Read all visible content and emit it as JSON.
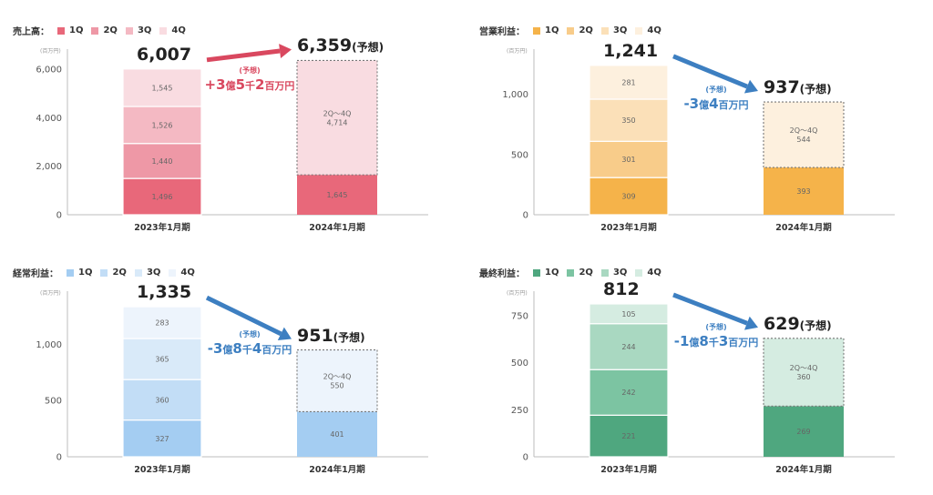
{
  "chart_data": [
    {
      "type": "bar",
      "title": "売上高：",
      "unit": "(百万円)",
      "categories": [
        "2023年1月期",
        "2024年1月期"
      ],
      "series": [
        {
          "name": "1Q",
          "values": [
            1496,
            1645
          ]
        },
        {
          "name": "2Q",
          "values": [
            1440,
            null
          ]
        },
        {
          "name": "3Q",
          "values": [
            1526,
            null
          ]
        },
        {
          "name": "4Q",
          "values": [
            1545,
            null
          ]
        }
      ],
      "forecast": {
        "label": "2Q～4Q",
        "value": 4714
      },
      "segment_labels": [
        [
          "1,496",
          "1,440",
          "1,526",
          "1,545"
        ],
        [
          "1,645",
          "4,714"
        ]
      ],
      "totals": [
        "6,007",
        "6,359"
      ],
      "forecast_suffix": "(予想)",
      "diff": {
        "label": "(予想)",
        "value": "+3",
        "units": [
          "億",
          "5",
          "千",
          "2",
          "百万円"
        ]
      },
      "yticks": [
        "0",
        "2,000",
        "4,000",
        "6,000"
      ],
      "ylim": [
        0,
        6300
      ],
      "colors": [
        "#e8687a",
        "#ee98a6",
        "#f4b9c3",
        "#f9dce1"
      ],
      "diff_color": "#d9485f"
    },
    {
      "type": "bar",
      "title": "営業利益：",
      "unit": "(百万円)",
      "categories": [
        "2023年1月期",
        "2024年1月期"
      ],
      "series": [
        {
          "name": "1Q",
          "values": [
            309,
            393
          ]
        },
        {
          "name": "2Q",
          "values": [
            301,
            null
          ]
        },
        {
          "name": "3Q",
          "values": [
            350,
            null
          ]
        },
        {
          "name": "4Q",
          "values": [
            281,
            null
          ]
        }
      ],
      "forecast": {
        "label": "2Q～4Q",
        "value": 544
      },
      "segment_labels": [
        [
          "309",
          "301",
          "350",
          "281"
        ],
        [
          "393",
          "544"
        ]
      ],
      "totals": [
        "1,241",
        "937"
      ],
      "forecast_suffix": "(予想)",
      "diff": {
        "label": "(予想)",
        "value": "-3",
        "units": [
          "億",
          "4",
          "百万円"
        ]
      },
      "yticks": [
        "0",
        "500",
        "1,000"
      ],
      "ylim": [
        0,
        1270
      ],
      "colors": [
        "#f5b34a",
        "#f8cc8a",
        "#fbe0b8",
        "#fdf0de"
      ],
      "diff_color": "#3d7fc1"
    },
    {
      "type": "bar",
      "title": "経常利益：",
      "unit": "(百万円)",
      "categories": [
        "2023年1月期",
        "2024年1月期"
      ],
      "series": [
        {
          "name": "1Q",
          "values": [
            327,
            401
          ]
        },
        {
          "name": "2Q",
          "values": [
            360,
            null
          ]
        },
        {
          "name": "3Q",
          "values": [
            365,
            null
          ]
        },
        {
          "name": "4Q",
          "values": [
            283,
            null
          ]
        }
      ],
      "forecast": {
        "label": "2Q～4Q",
        "value": 550
      },
      "segment_labels": [
        [
          "327",
          "360",
          "365",
          "283"
        ],
        [
          "401",
          "550"
        ]
      ],
      "totals": [
        "1,335",
        "951"
      ],
      "forecast_suffix": "(予想)",
      "diff": {
        "label": "(予想)",
        "value": "-3",
        "units": [
          "億",
          "8",
          "千",
          "4",
          "百万円"
        ]
      },
      "yticks": [
        "0",
        "500",
        "1,000"
      ],
      "ylim": [
        0,
        1360
      ],
      "colors": [
        "#a4cdf2",
        "#c2ddf6",
        "#d9eaf9",
        "#edf4fc"
      ],
      "diff_color": "#3d7fc1"
    },
    {
      "type": "bar",
      "title": "最終利益：",
      "unit": "(百万円)",
      "categories": [
        "2023年1月期",
        "2024年1月期"
      ],
      "series": [
        {
          "name": "1Q",
          "values": [
            221,
            269
          ]
        },
        {
          "name": "2Q",
          "values": [
            242,
            null
          ]
        },
        {
          "name": "3Q",
          "values": [
            244,
            null
          ]
        },
        {
          "name": "4Q",
          "values": [
            105,
            null
          ]
        }
      ],
      "forecast": {
        "label": "2Q～4Q",
        "value": 360
      },
      "segment_labels": [
        [
          "221",
          "242",
          "244",
          "105"
        ],
        [
          "269",
          "360"
        ]
      ],
      "totals": [
        "812",
        "629"
      ],
      "forecast_suffix": "(予想)",
      "diff": {
        "label": "(予想)",
        "value": "-1",
        "units": [
          "億",
          "8",
          "千",
          "3",
          "百万円"
        ]
      },
      "yticks": [
        "0",
        "250",
        "500",
        "750"
      ],
      "ylim": [
        0,
        812
      ],
      "colors": [
        "#4fa77f",
        "#7cc4a2",
        "#a9d8c1",
        "#d5ece1"
      ],
      "diff_color": "#3d7fc1"
    }
  ]
}
